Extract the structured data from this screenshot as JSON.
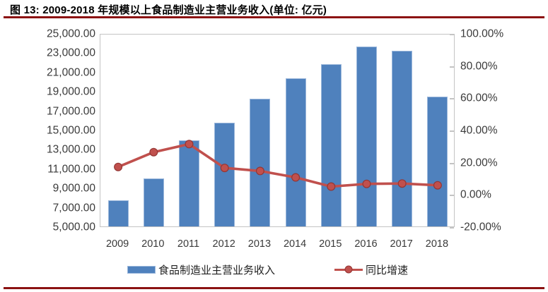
{
  "title": {
    "text": "图 13:  2009-2018 年规模以上食品制造业主营业务收入(单位: 亿元)"
  },
  "theme": {
    "accent_rule": "#8C1212",
    "bar_fill": "#4F81BD",
    "bar_edge": "#9BB7DB",
    "line_color": "#C0504D",
    "marker_edge": "#943634",
    "axis_line": "#C4C4C4",
    "axis_text": "#3A3A3A"
  },
  "chart_data": {
    "type": "combo",
    "title": "2009-2018 年规模以上食品制造业主营业务收入",
    "unit": "亿元",
    "categories": [
      "2009",
      "2010",
      "2011",
      "2012",
      "2013",
      "2014",
      "2015",
      "2016",
      "2017",
      "2018"
    ],
    "series": [
      {
        "name": "食品制造业主营业务收入",
        "chart": "bar",
        "axis": "left",
        "color": "#4F81BD",
        "values": [
          7700,
          9950,
          13920,
          15700,
          18200,
          20300,
          21800,
          23650,
          23200,
          18400
        ]
      },
      {
        "name": "同比增速",
        "chart": "line",
        "axis": "right",
        "color": "#C0504D",
        "values": [
          17.8,
          27.0,
          32.0,
          17.2,
          15.3,
          11.3,
          5.6,
          7.3,
          7.5,
          6.4
        ]
      }
    ],
    "left_axis": {
      "min": 5000,
      "max": 25000,
      "step": 2000,
      "tick_labels": [
        "25,000.00",
        "23,000.00",
        "21,000.00",
        "19,000.00",
        "17,000.00",
        "15,000.00",
        "13,000.00",
        "11,000.00",
        "9,000.00",
        "7,000.00",
        "5,000.00"
      ]
    },
    "right_axis": {
      "min": -20,
      "max": 100,
      "step": 20,
      "tick_labels": [
        "100.00%",
        "80.00%",
        "60.00%",
        "40.00%",
        "20.00%",
        "0.00%",
        "-20.00%"
      ]
    },
    "legend_position": "bottom",
    "grid": false
  }
}
